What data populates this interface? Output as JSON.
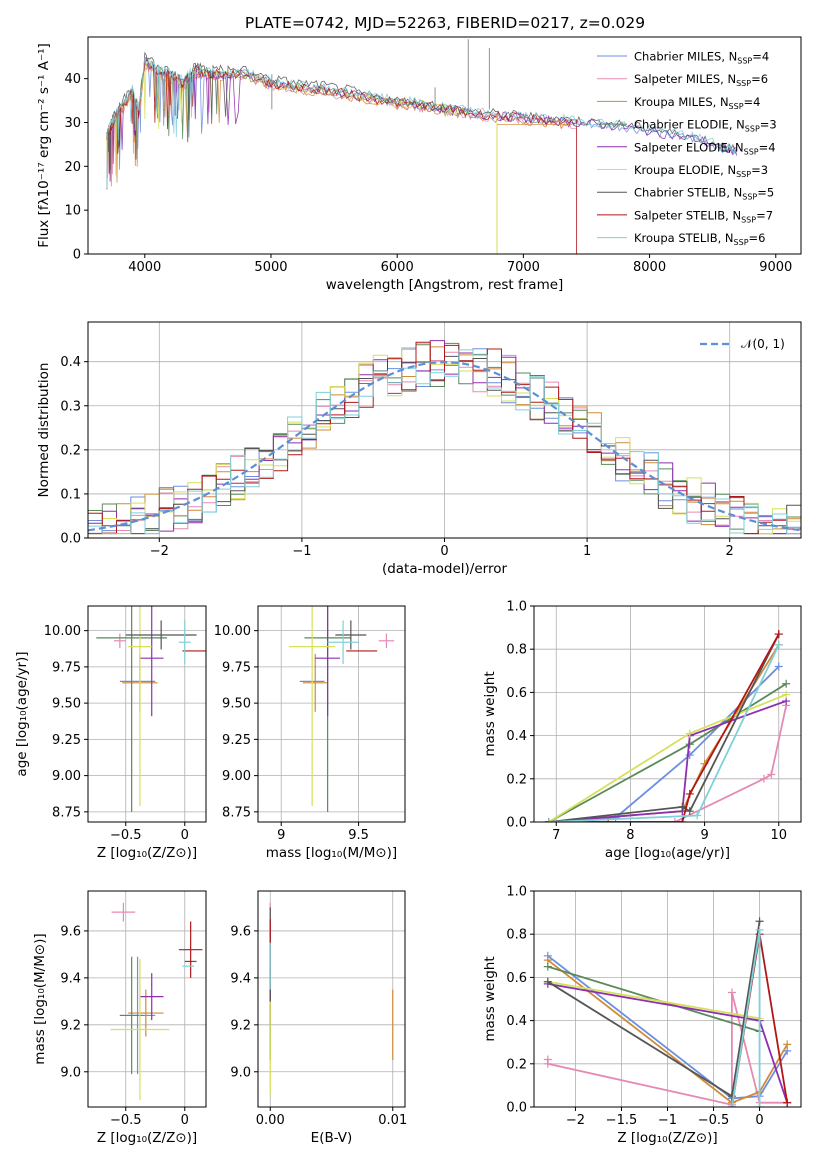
{
  "figure": {
    "title": "PLATE=0742, MJD=52263, FIBERID=0217, z=0.029"
  },
  "models": [
    {
      "name": "Chabrier MILES",
      "nssp": "4",
      "color": "#6b8fe0"
    },
    {
      "name": "Salpeter MILES",
      "nssp": "6",
      "color": "#e58ab4"
    },
    {
      "name": "Kroupa MILES",
      "nssp": "4",
      "color": "#d08a3a"
    },
    {
      "name": "Chabrier ELODIE",
      "nssp": "3",
      "color": "#5a8a5a"
    },
    {
      "name": "Salpeter ELODIE",
      "nssp": "4",
      "color": "#8e2fb0"
    },
    {
      "name": "Kroupa ELODIE",
      "nssp": "3",
      "color": "#d6e05a"
    },
    {
      "name": "Chabrier STELIB",
      "nssp": "5",
      "color": "#555555"
    },
    {
      "name": "Salpeter STELIB",
      "nssp": "7",
      "color": "#b01818"
    },
    {
      "name": "Kroupa STELIB",
      "nssp": "6",
      "color": "#7fd0d8"
    }
  ],
  "chart_data": [
    {
      "id": "spectrum",
      "type": "line",
      "xlabel": "wavelength [Angstrom, rest frame]",
      "ylabel": "Flux [fλ10⁻¹⁷ erg cm⁻² s⁻¹ A⁻¹]",
      "xlim": [
        3550,
        9200
      ],
      "ylim": [
        0,
        49.5
      ],
      "xticks": [
        4000,
        5000,
        6000,
        7000,
        8000,
        9000
      ],
      "yticks": [
        0,
        10,
        20,
        30,
        40
      ],
      "legend": "top-right",
      "x": [
        3700,
        3750,
        3800,
        3900,
        3950,
        4000,
        4100,
        4200,
        4300,
        4400,
        4500,
        4600,
        4800,
        5000,
        5200,
        5400,
        5600,
        5800,
        6000,
        6200,
        6400,
        6600,
        6800,
        7000,
        7200,
        7400,
        7600,
        7800,
        8000,
        8200,
        8400,
        8600,
        8700
      ],
      "series_values": [
        [
          27,
          30,
          33,
          37,
          32,
          44,
          42,
          41,
          39,
          42,
          41,
          41,
          41,
          39,
          38,
          37.5,
          36.5,
          35.5,
          34.5,
          34,
          33,
          32,
          31.5,
          31,
          30.5,
          30,
          29.5,
          29,
          28,
          27,
          26,
          24,
          23
        ],
        [
          26,
          29,
          32,
          36,
          31,
          43,
          41,
          40,
          38,
          41,
          40.5,
          40.5,
          40.5,
          38.5,
          37.5,
          37,
          36,
          35,
          34,
          33.5,
          32.5,
          31.5,
          31,
          30.5,
          30,
          29.5,
          null,
          null,
          null,
          null,
          null,
          null,
          null
        ],
        [
          26,
          29,
          32,
          36,
          31,
          43,
          41,
          40,
          38,
          41,
          40.5,
          40.5,
          40.5,
          38.5,
          37.5,
          37,
          36,
          35,
          34,
          33.5,
          32.5,
          31.5,
          31,
          30.5,
          30,
          29.5,
          null,
          null,
          null,
          null,
          null,
          null,
          null
        ],
        [
          27,
          30,
          33,
          37,
          32,
          44,
          42,
          41,
          39,
          42,
          41,
          41,
          41,
          39,
          38,
          37.5,
          36.5,
          35.5,
          34.5,
          34,
          33,
          32,
          null,
          null,
          null,
          null,
          null,
          null,
          null,
          null,
          null,
          null,
          null
        ],
        [
          27,
          30,
          33,
          37,
          32,
          44,
          42,
          41,
          39,
          42,
          41,
          41,
          41,
          39,
          38,
          37.5,
          36.5,
          35.5,
          34.5,
          34,
          33,
          32,
          31.5,
          31,
          30.5,
          30,
          29.5,
          29,
          28,
          27,
          26,
          24,
          23
        ],
        [
          27,
          30,
          33,
          37,
          32,
          44,
          42,
          41,
          39,
          42,
          41,
          41,
          41,
          39,
          38,
          37.5,
          36.5,
          35.5,
          34.5,
          34,
          33,
          32,
          null,
          null,
          null,
          null,
          null,
          null,
          null,
          null,
          null,
          null,
          null
        ],
        [
          28,
          31,
          34,
          38,
          33,
          45,
          43,
          42,
          40,
          43,
          42,
          42,
          42,
          40,
          39,
          38.5,
          37.5,
          36,
          35,
          34.5,
          33.5,
          32.5,
          32,
          31.5,
          31,
          30.5,
          30,
          29.5,
          28.5,
          27.5,
          26.5,
          24.5,
          23.5
        ],
        [
          27,
          30,
          33,
          37,
          32,
          44,
          42,
          41,
          39,
          42,
          41,
          41,
          41,
          39,
          38,
          37.5,
          36.5,
          35.5,
          34.5,
          34,
          33,
          32,
          31.5,
          31,
          30.5,
          30,
          null,
          null,
          null,
          null,
          null,
          null,
          null
        ],
        [
          27.5,
          30.5,
          33.5,
          37.5,
          32.5,
          44.5,
          42.5,
          41.5,
          39.5,
          42.5,
          41.5,
          41.5,
          41.5,
          39.5,
          38.5,
          38,
          37,
          36,
          35,
          34.5,
          33.5,
          32.5,
          32,
          31.5,
          31,
          30.5,
          30,
          29.5,
          28.5,
          27.5,
          26.5,
          24.5,
          23.5
        ]
      ],
      "series_end_drop": [
        null,
        7420,
        6790,
        null,
        null,
        6790,
        null,
        7420,
        null
      ]
    },
    {
      "id": "residuals",
      "type": "line",
      "xlabel": "(data-model)/error",
      "ylabel": "Normed distribution",
      "xlim": [
        -2.5,
        2.5
      ],
      "ylim": [
        0,
        0.49
      ],
      "xticks": [
        -2,
        -1,
        0,
        1,
        2
      ],
      "yticks": [
        0.0,
        0.1,
        0.2,
        0.3,
        0.4
      ],
      "grid": true,
      "legend": "top-right",
      "gaussian_label": "𝒩(0, 1)",
      "gaussian": {
        "mean": 0,
        "sigma": 1
      }
    },
    {
      "id": "age-vs-Z",
      "type": "scatter",
      "xlabel": "Z [log₁₀(Z/Z⊙)]",
      "ylabel": "age  [log₁₀(age/yr)]",
      "xlim": [
        -0.82,
        0.18
      ],
      "ylim": [
        8.68,
        10.17
      ],
      "xticks": [
        -0.5,
        0.0
      ],
      "yticks": [
        8.75,
        9.0,
        9.25,
        9.5,
        9.75,
        10.0
      ],
      "grid": true,
      "points": [
        {
          "x": -0.4,
          "y": 9.65,
          "xerr": 0.15,
          "yerr": 0.0
        },
        {
          "x": -0.55,
          "y": 9.93,
          "xerr": 0.05,
          "yerr": 0.05
        },
        {
          "x": -0.38,
          "y": 9.64,
          "xerr": 0.15,
          "yerr": 0.2
        },
        {
          "x": -0.45,
          "y": 9.95,
          "xerr": 0.3,
          "yerr": 1.2
        },
        {
          "x": -0.28,
          "y": 9.81,
          "xerr": 0.1,
          "yerr": 0.4
        },
        {
          "x": -0.38,
          "y": 9.89,
          "xerr": 0.1,
          "yerr": 1.1
        },
        {
          "x": -0.2,
          "y": 9.97,
          "xerr": 0.3,
          "yerr": 0.1
        },
        {
          "x": 0.08,
          "y": 9.86,
          "xerr": 0.1,
          "yerr": 0.0
        },
        {
          "x": 0.0,
          "y": 9.92,
          "xerr": 0.05,
          "yerr": 0.15
        }
      ]
    },
    {
      "id": "age-vs-mass",
      "type": "scatter",
      "xlabel": "mass [log₁₀(M/M⊙)]",
      "xlim": [
        8.85,
        9.8
      ],
      "ylim": [
        8.68,
        10.17
      ],
      "xticks": [
        9.0,
        9.5
      ],
      "yticks": [
        8.75,
        9.0,
        9.25,
        9.5,
        9.75,
        10.0
      ],
      "grid": true,
      "points": [
        {
          "x": 9.2,
          "y": 9.65,
          "xerr": 0.08,
          "yerr": 0.0
        },
        {
          "x": 9.68,
          "y": 9.93,
          "xerr": 0.05,
          "yerr": 0.05
        },
        {
          "x": 9.22,
          "y": 9.64,
          "xerr": 0.08,
          "yerr": 0.2
        },
        {
          "x": 9.3,
          "y": 9.95,
          "xerr": 0.15,
          "yerr": 1.2
        },
        {
          "x": 9.3,
          "y": 9.81,
          "xerr": 0.08,
          "yerr": 0.4
        },
        {
          "x": 9.2,
          "y": 9.89,
          "xerr": 0.15,
          "yerr": 1.1
        },
        {
          "x": 9.45,
          "y": 9.97,
          "xerr": 0.1,
          "yerr": 0.1
        },
        {
          "x": 9.52,
          "y": 9.86,
          "xerr": 0.1,
          "yerr": 0.0
        },
        {
          "x": 9.4,
          "y": 9.92,
          "xerr": 0.1,
          "yerr": 0.15
        }
      ]
    },
    {
      "id": "weight-vs-age",
      "type": "line",
      "xlabel": "age  [log₁₀(age/yr)]",
      "ylabel": "mass weight",
      "xlim": [
        6.7,
        10.3
      ],
      "ylim": [
        0,
        1.0
      ],
      "xticks": [
        7,
        8,
        9,
        10
      ],
      "yticks": [
        0.0,
        0.2,
        0.4,
        0.6,
        0.8,
        1.0
      ],
      "grid": true,
      "x_series": [
        [
          6.9,
          7.8,
          8.8,
          10.0
        ],
        [
          6.9,
          8.6,
          9.8,
          9.9,
          10.1
        ],
        [
          6.9,
          8.7,
          9.0,
          10.0
        ],
        [
          6.9,
          8.8,
          10.1
        ],
        [
          6.9,
          8.7,
          8.8,
          10.1
        ],
        [
          6.9,
          8.8,
          10.1
        ],
        [
          6.9,
          8.7,
          8.8,
          10.0
        ],
        [
          6.9,
          7.7,
          8.7,
          8.8,
          10.0
        ],
        [
          6.9,
          8.9,
          10.0
        ]
      ],
      "y_series": [
        [
          0.0,
          0.02,
          0.31,
          0.72
        ],
        [
          0.0,
          0.0,
          0.2,
          0.22,
          0.54
        ],
        [
          0.0,
          0.05,
          0.27,
          0.82
        ],
        [
          0.0,
          0.36,
          0.64
        ],
        [
          0.0,
          0.05,
          0.4,
          0.56
        ],
        [
          0.0,
          0.41,
          0.59
        ],
        [
          0.0,
          0.07,
          0.05,
          0.87
        ],
        [
          0.0,
          0.0,
          0.0,
          0.13,
          0.87
        ],
        [
          0.0,
          0.03,
          0.82
        ]
      ]
    },
    {
      "id": "mass-vs-Z",
      "type": "scatter",
      "xlabel": "Z [log₁₀(Z/Z⊙)]",
      "ylabel": "mass [log₁₀(M/M⊙)]",
      "xlim": [
        -0.82,
        0.18
      ],
      "ylim": [
        8.85,
        9.77
      ],
      "xticks": [
        -0.5,
        0.0
      ],
      "yticks": [
        9.0,
        9.2,
        9.4,
        9.6
      ],
      "grid": true,
      "points": [
        {
          "x": -0.4,
          "y": 9.24,
          "xerr": 0.15,
          "yerr": 0.25
        },
        {
          "x": -0.52,
          "y": 9.68,
          "xerr": 0.1,
          "yerr": 0.04
        },
        {
          "x": -0.33,
          "y": 9.25,
          "xerr": 0.15,
          "yerr": 0.1
        },
        {
          "x": -0.45,
          "y": 9.24,
          "xerr": 0.1,
          "yerr": 0.25
        },
        {
          "x": -0.28,
          "y": 9.32,
          "xerr": 0.1,
          "yerr": 0.1
        },
        {
          "x": -0.38,
          "y": 9.18,
          "xerr": 0.25,
          "yerr": 0.3
        },
        {
          "x": 0.05,
          "y": 9.47,
          "xerr": 0.05,
          "yerr": 0.0
        },
        {
          "x": 0.05,
          "y": 9.52,
          "xerr": 0.1,
          "yerr": 0.12
        },
        {
          "x": 0.03,
          "y": 9.45,
          "xerr": 0.05,
          "yerr": 0.0
        }
      ]
    },
    {
      "id": "mass-vs-EBV",
      "type": "scatter",
      "xlabel": "E(B-V)",
      "xlim": [
        -0.001,
        0.011
      ],
      "ylim": [
        8.85,
        9.77
      ],
      "xticks": [
        0.0,
        0.01
      ],
      "xtick_labels": [
        "0.00",
        "0.01"
      ],
      "yticks": [
        9.0,
        9.2,
        9.4,
        9.6
      ],
      "grid": true,
      "points": [
        {
          "x": 0.0,
          "y": 9.25,
          "xerr": 0.0,
          "yerr": 0.2
        },
        {
          "x": 0.0,
          "y": 9.6,
          "xerr": 0.0,
          "yerr": 0.12
        },
        {
          "x": 0.01,
          "y": 9.2,
          "xerr": 0.0,
          "yerr": 0.15
        },
        {
          "x": 0.0,
          "y": 9.25,
          "xerr": 0.0,
          "yerr": 0.2
        },
        {
          "x": 0.0,
          "y": 9.3,
          "xerr": 0.0,
          "yerr": 0.1
        },
        {
          "x": 0.0,
          "y": 9.1,
          "xerr": 0.0,
          "yerr": 0.2
        },
        {
          "x": 0.0,
          "y": 9.5,
          "xerr": 0.0,
          "yerr": 0.2
        },
        {
          "x": 0.0,
          "y": 9.5,
          "xerr": 0.0,
          "yerr": 0.15
        },
        {
          "x": 0.0,
          "y": 9.45,
          "xerr": 0.0,
          "yerr": 0.1
        }
      ]
    },
    {
      "id": "weight-vs-Z",
      "type": "line",
      "xlabel": "Z [log₁₀(Z/Z⊙)]",
      "ylabel": "mass weight",
      "xlim": [
        -2.45,
        0.45
      ],
      "ylim": [
        0,
        1.0
      ],
      "xticks": [
        -2.0,
        -1.5,
        -1.0,
        -0.5,
        0.0
      ],
      "yticks": [
        0.0,
        0.2,
        0.4,
        0.6,
        0.8,
        1.0
      ],
      "grid": true,
      "x_series": [
        [
          -2.3,
          -0.3,
          0.0,
          0.3
        ],
        [
          -2.3,
          -2.3,
          -0.3,
          -0.3,
          0.0,
          0.3
        ],
        [
          -2.3,
          -0.3,
          0.0,
          0.3
        ],
        [
          -2.3,
          0.0
        ],
        [
          -2.3,
          0.0,
          0.3
        ],
        [
          -2.3,
          0.0
        ],
        [
          -2.3,
          -0.3,
          0.0
        ],
        [
          -0.3,
          0.0,
          0.3
        ],
        [
          -0.3,
          0.0,
          0.0
        ]
      ],
      "y_series": [
        [
          0.7,
          0.04,
          0.05,
          0.26
        ],
        [
          0.22,
          0.2,
          0.01,
          0.53,
          0.02,
          0.02
        ],
        [
          0.68,
          0.02,
          0.07,
          0.29
        ],
        [
          0.65,
          0.35
        ],
        [
          0.57,
          0.4,
          0.02
        ],
        [
          0.58,
          0.41
        ],
        [
          0.58,
          0.05,
          0.86
        ],
        [
          0.0,
          0.8,
          0.02
        ],
        [
          0.0,
          0.82,
          0.0
        ]
      ]
    }
  ]
}
